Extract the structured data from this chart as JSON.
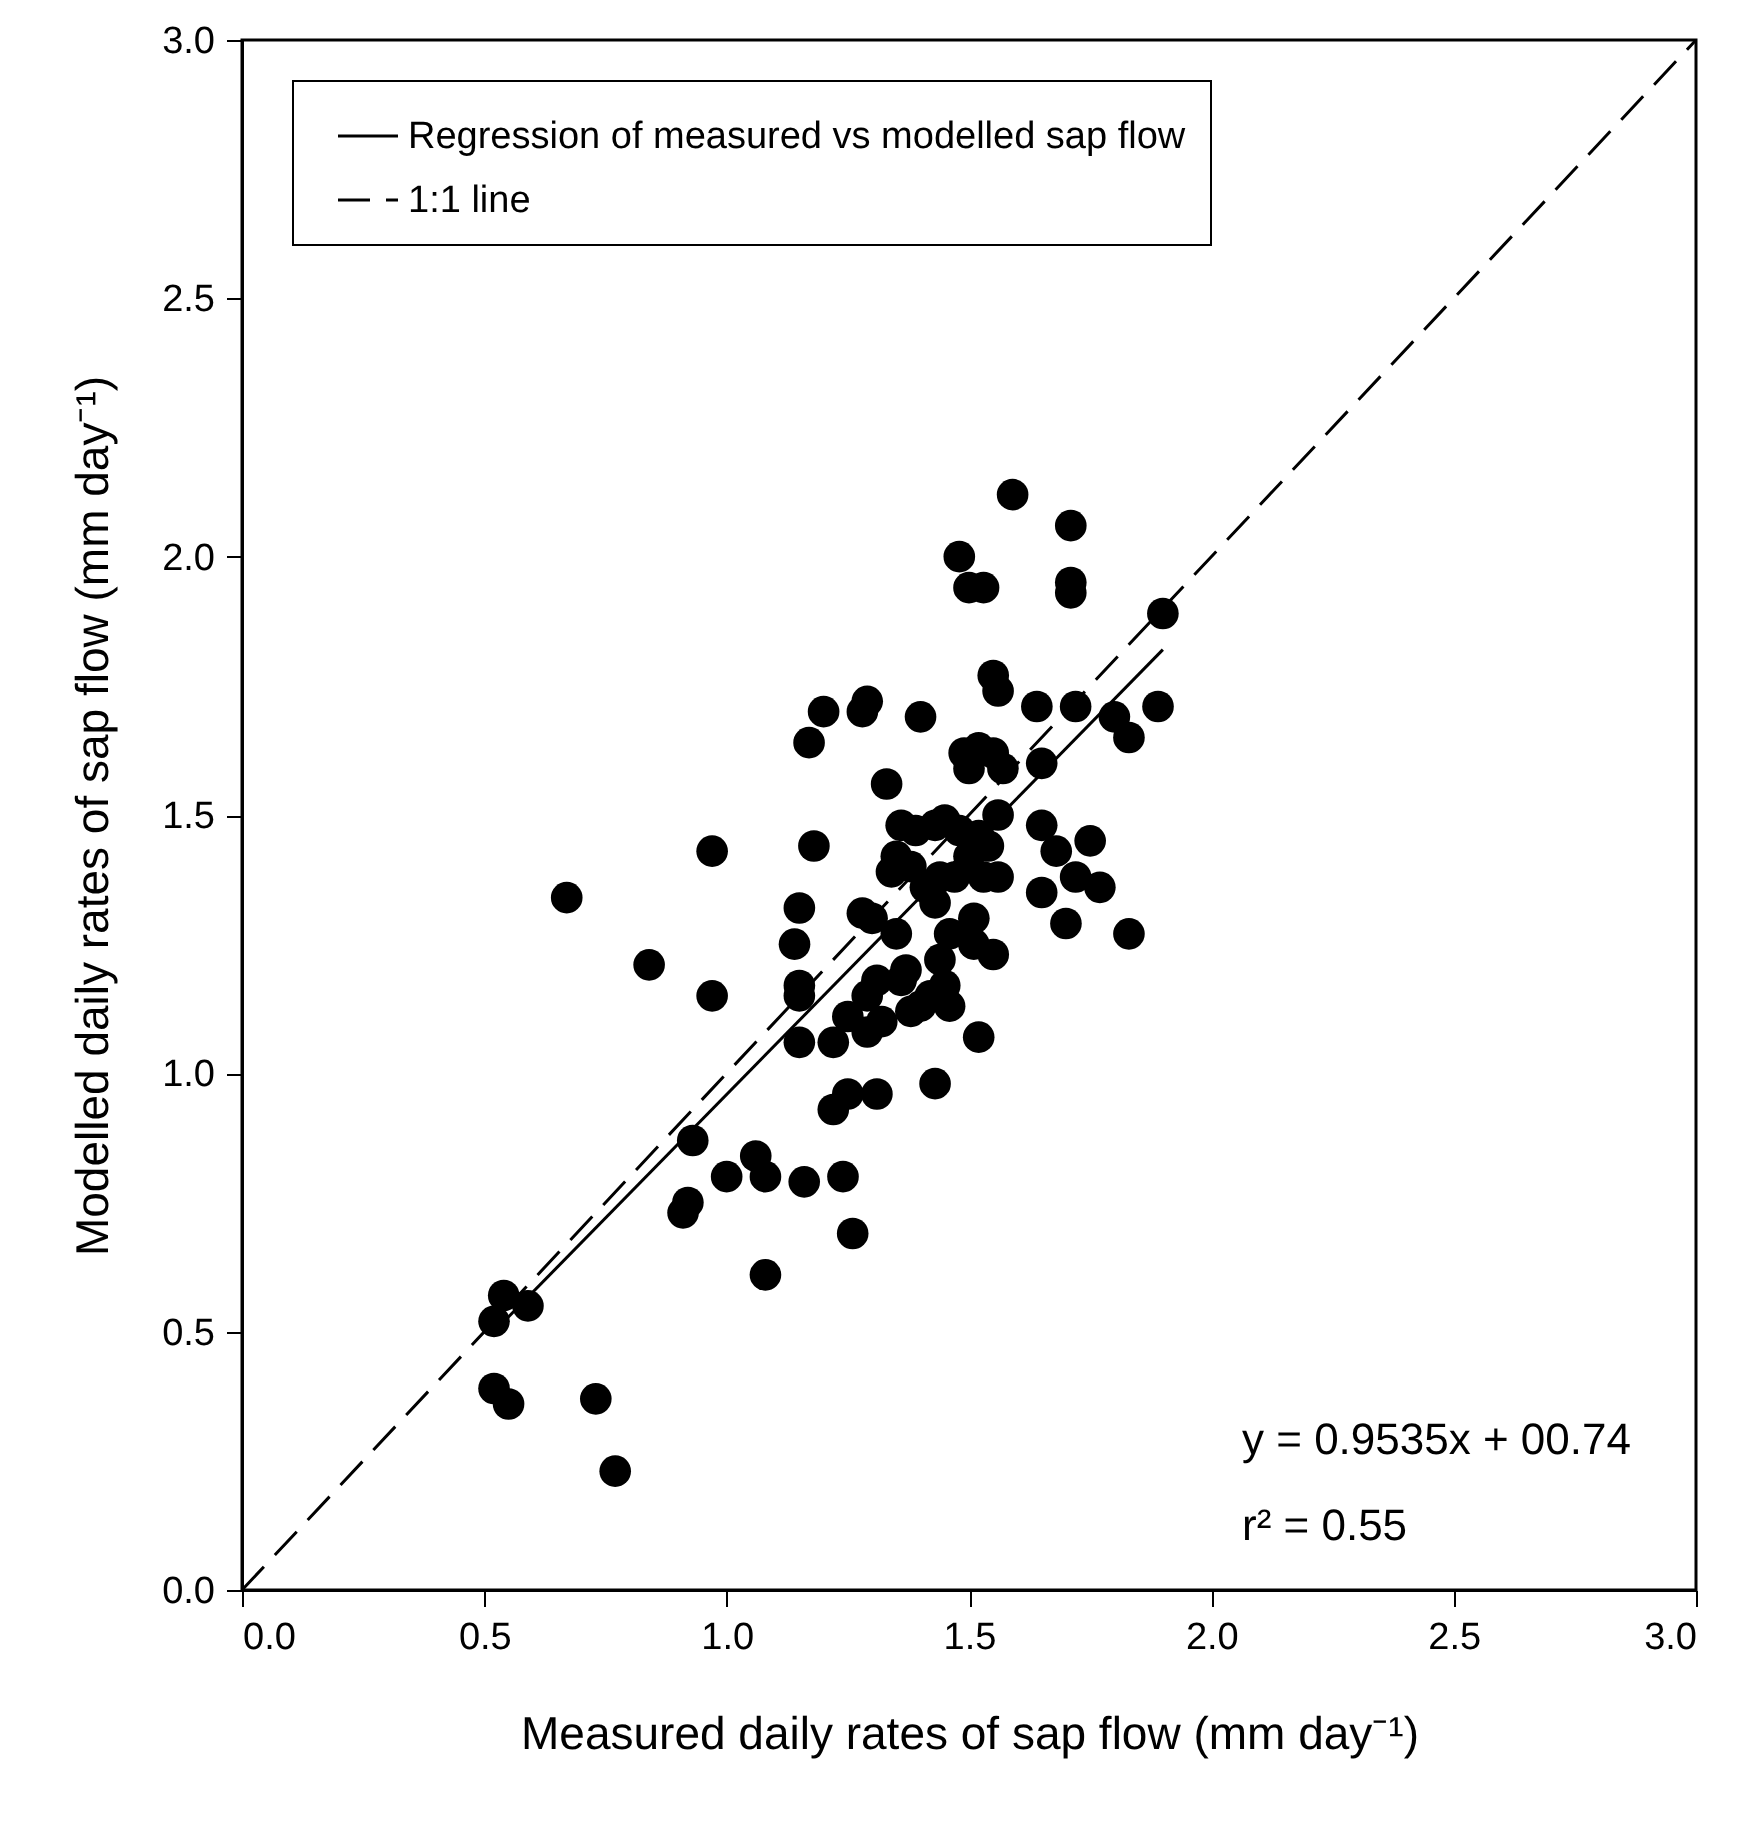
{
  "chart_data": {
    "type": "scatter",
    "xlabel": "Measured daily rates of sap flow (mm day⁻¹)",
    "ylabel": "Modelled daily rates of sap flow (mm day⁻¹)",
    "xlim": [
      0,
      3
    ],
    "ylim": [
      0,
      3
    ],
    "xticks": [
      {
        "value": 0,
        "label": "0.0"
      },
      {
        "value": 0.5,
        "label": "0.5"
      },
      {
        "value": 1,
        "label": "1.0"
      },
      {
        "value": 1.5,
        "label": "1.5"
      },
      {
        "value": 2,
        "label": "2.0"
      },
      {
        "value": 2.5,
        "label": "2.5"
      },
      {
        "value": 3,
        "label": "3.0"
      }
    ],
    "yticks": [
      {
        "value": 0,
        "label": "0.0"
      },
      {
        "value": 0.5,
        "label": "0.5"
      },
      {
        "value": 1,
        "label": "1.0"
      },
      {
        "value": 1.5,
        "label": "1.5"
      },
      {
        "value": 2,
        "label": "2.0"
      },
      {
        "value": 2.5,
        "label": "2.5"
      },
      {
        "value": 3,
        "label": "3.0"
      }
    ],
    "legend": "top",
    "grid": false,
    "annotations": [
      "y = 0.9535x + 00.74",
      "r² = 0.55"
    ],
    "series": [
      {
        "marker": "circle",
        "color": "#000000",
        "x": [
          0.52,
          0.54,
          0.59,
          0.52,
          0.55,
          0.73,
          0.77,
          0.67,
          0.84,
          0.91,
          0.92,
          0.93,
          0.97,
          0.97,
          1.0,
          1.06,
          1.08,
          1.08,
          1.14,
          1.15,
          1.15,
          1.15,
          1.15,
          1.16,
          1.17,
          1.18,
          1.2,
          1.22,
          1.22,
          1.24,
          1.25,
          1.25,
          1.26,
          1.28,
          1.29,
          1.28,
          1.29,
          1.29,
          1.3,
          1.31,
          1.31,
          1.32,
          1.33,
          1.34,
          1.35,
          1.35,
          1.36,
          1.36,
          1.37,
          1.38,
          1.38,
          1.39,
          1.4,
          1.4,
          1.41,
          1.42,
          1.43,
          1.43,
          1.43,
          1.44,
          1.44,
          1.45,
          1.45,
          1.46,
          1.46,
          1.47,
          1.48,
          1.48,
          1.49,
          1.5,
          1.5,
          1.5,
          1.51,
          1.51,
          1.52,
          1.52,
          1.52,
          1.53,
          1.53,
          1.54,
          1.55,
          1.55,
          1.55,
          1.56,
          1.56,
          1.56,
          1.57,
          1.59,
          1.64,
          1.65,
          1.65,
          1.65,
          1.68,
          1.7,
          1.71,
          1.71,
          1.71,
          1.72,
          1.72,
          1.75,
          1.77,
          1.8,
          1.83,
          1.83,
          1.89,
          1.9
        ],
        "values": [
          0.52,
          0.57,
          0.55,
          0.39,
          0.36,
          0.37,
          0.23,
          1.34,
          1.21,
          0.73,
          0.75,
          0.87,
          1.15,
          1.43,
          0.8,
          0.84,
          0.8,
          0.61,
          1.25,
          1.32,
          1.17,
          1.15,
          1.06,
          0.79,
          1.64,
          1.44,
          1.7,
          1.06,
          0.93,
          0.8,
          0.96,
          1.11,
          0.69,
          1.7,
          1.72,
          1.31,
          1.08,
          1.15,
          1.3,
          1.18,
          0.96,
          1.1,
          1.56,
          1.39,
          1.42,
          1.27,
          1.48,
          1.18,
          1.2,
          1.4,
          1.12,
          1.47,
          1.69,
          1.13,
          1.36,
          1.15,
          0.98,
          1.33,
          1.48,
          1.38,
          1.22,
          1.49,
          1.17,
          1.27,
          1.13,
          1.38,
          2.0,
          1.47,
          1.62,
          1.94,
          1.59,
          1.42,
          1.3,
          1.25,
          1.63,
          1.46,
          1.07,
          1.94,
          1.38,
          1.44,
          1.62,
          1.23,
          1.77,
          1.74,
          1.5,
          1.38,
          1.59,
          2.12,
          1.71,
          1.6,
          1.48,
          1.35,
          1.43,
          1.29,
          1.93,
          1.95,
          2.06,
          1.71,
          1.38,
          1.45,
          1.36,
          1.69,
          1.65,
          1.27,
          1.71,
          1.89
        ]
      },
      {
        "type": "line",
        "name": "Regression of measured vs modelled sap flow",
        "color": "#000000",
        "line_style": "solid",
        "x": [
          0.52,
          1.9
        ],
        "values": [
          0.5,
          1.82
        ]
      },
      {
        "type": "line",
        "name": "1:1 line",
        "color": "#000000",
        "line_style": "dashed",
        "x": [
          0,
          3
        ],
        "values": [
          0,
          3
        ]
      }
    ]
  }
}
